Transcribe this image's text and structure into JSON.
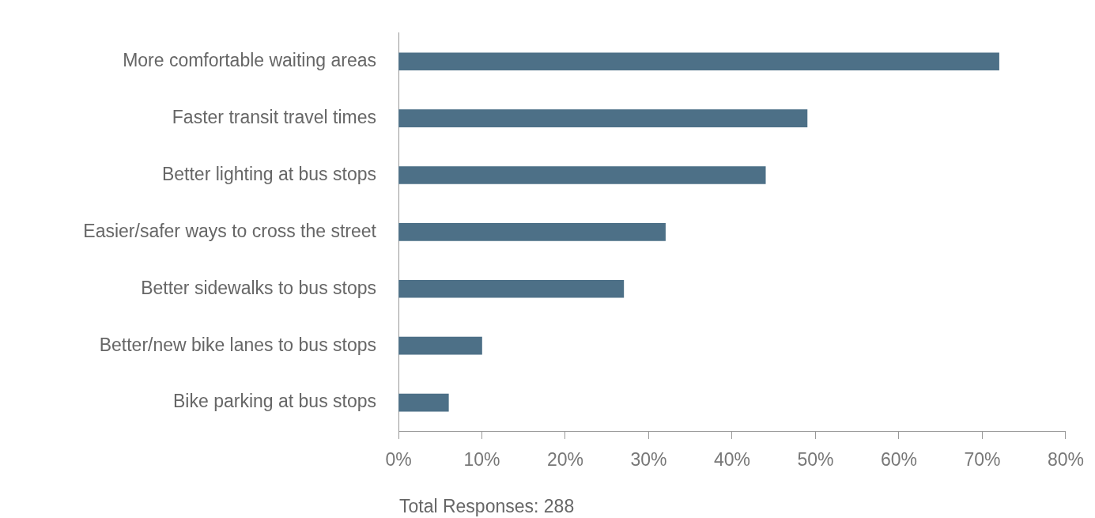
{
  "chart_data": {
    "type": "bar",
    "orientation": "horizontal",
    "categories": [
      "More comfortable waiting areas",
      "Faster transit travel times",
      "Better lighting at bus stops",
      "Easier/safer ways to cross the street",
      "Better sidewalks to bus stops",
      "Better/new bike lanes to bus stops",
      "Bike parking at bus stops"
    ],
    "values": [
      72,
      49,
      44,
      32,
      27,
      10,
      6
    ],
    "color": "#4d7087",
    "xlim": [
      0,
      80
    ],
    "xticks": [
      {
        "value": 0,
        "label": "0%"
      },
      {
        "value": 10,
        "label": "10%"
      },
      {
        "value": 20,
        "label": "20%"
      },
      {
        "value": 30,
        "label": "30%"
      },
      {
        "value": 40,
        "label": "40%"
      },
      {
        "value": 50,
        "label": "50%"
      },
      {
        "value": 60,
        "label": "60%"
      },
      {
        "value": 70,
        "label": "70%"
      },
      {
        "value": 80,
        "label": "80%"
      }
    ],
    "grid": false,
    "legend": false,
    "annotations": [
      "Total Responses: 288"
    ]
  }
}
